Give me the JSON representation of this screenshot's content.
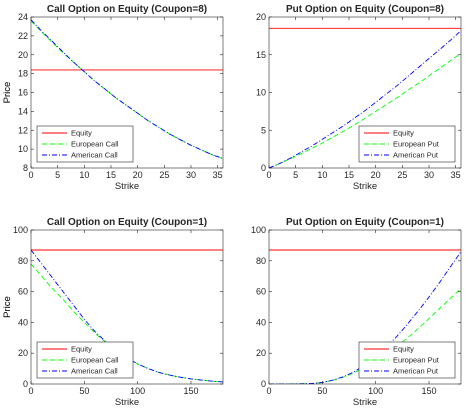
{
  "chart_data": [
    {
      "type": "line",
      "title": "Call Option on Equity (Coupon=8)",
      "xlabel": "Strike",
      "ylabel": "Price",
      "xlim": [
        0,
        36
      ],
      "ylim": [
        8,
        24
      ],
      "xticks": [
        0,
        5,
        10,
        15,
        20,
        25,
        30,
        35
      ],
      "yticks": [
        8,
        10,
        12,
        14,
        16,
        18,
        20,
        22,
        24
      ],
      "legend_position": "lower-left",
      "x": [
        0,
        2,
        4,
        6,
        8,
        10,
        12,
        14,
        16,
        18,
        20,
        22,
        24,
        26,
        28,
        30,
        32,
        34,
        36
      ],
      "series": [
        {
          "name": "Equity",
          "color": "#ff0000",
          "dash": "solid",
          "values": [
            18.4,
            18.4,
            18.4,
            18.4,
            18.4,
            18.4,
            18.4,
            18.4,
            18.4,
            18.4,
            18.4,
            18.4,
            18.4,
            18.4,
            18.4,
            18.4,
            18.4,
            18.4,
            18.4
          ]
        },
        {
          "name": "European Call",
          "color": "#00ff00",
          "dash": "dashed",
          "values": [
            23.6,
            22.4,
            21.3,
            20.2,
            19.2,
            18.2,
            17.2,
            16.3,
            15.4,
            14.6,
            13.8,
            13.0,
            12.3,
            11.6,
            11.0,
            10.4,
            9.9,
            9.4,
            9.0
          ]
        },
        {
          "name": "American Call",
          "color": "#0000ff",
          "dash": "dashdot",
          "values": [
            23.7,
            22.5,
            21.4,
            20.3,
            19.2,
            18.2,
            17.2,
            16.3,
            15.4,
            14.6,
            13.8,
            13.0,
            12.3,
            11.6,
            11.0,
            10.4,
            9.9,
            9.4,
            9.0
          ]
        }
      ]
    },
    {
      "type": "line",
      "title": "Put Option on Equity (Coupon=8)",
      "xlabel": "Strike",
      "ylabel": "Price",
      "xlim": [
        0,
        36
      ],
      "ylim": [
        0,
        20
      ],
      "xticks": [
        0,
        5,
        10,
        15,
        20,
        25,
        30,
        35
      ],
      "yticks": [
        0,
        5,
        10,
        15,
        20
      ],
      "legend_position": "lower-right",
      "x": [
        0,
        2,
        4,
        6,
        8,
        10,
        12,
        14,
        16,
        18,
        20,
        22,
        24,
        26,
        28,
        30,
        32,
        34,
        36
      ],
      "series": [
        {
          "name": "Equity",
          "color": "#ff0000",
          "dash": "solid",
          "values": [
            18.5,
            18.5,
            18.5,
            18.5,
            18.5,
            18.5,
            18.5,
            18.5,
            18.5,
            18.5,
            18.5,
            18.5,
            18.5,
            18.5,
            18.5,
            18.5,
            18.5,
            18.5,
            18.5
          ]
        },
        {
          "name": "European Put",
          "color": "#00ff00",
          "dash": "dashed",
          "values": [
            0,
            0.6,
            1.2,
            1.9,
            2.6,
            3.3,
            4.1,
            4.9,
            5.7,
            6.6,
            7.5,
            8.4,
            9.3,
            10.3,
            11.2,
            12.2,
            13.2,
            14.2,
            15.2
          ]
        },
        {
          "name": "American Put",
          "color": "#0000ff",
          "dash": "dashdot",
          "values": [
            0,
            0.6,
            1.3,
            2.1,
            2.9,
            3.8,
            4.7,
            5.6,
            6.6,
            7.6,
            8.7,
            9.8,
            10.9,
            12.1,
            13.3,
            14.5,
            15.7,
            16.9,
            18.2
          ]
        }
      ]
    },
    {
      "type": "line",
      "title": "Call Option on Equity (Coupon=1)",
      "xlabel": "Strike",
      "ylabel": "Price",
      "xlim": [
        0,
        180
      ],
      "ylim": [
        0,
        100
      ],
      "xticks": [
        0,
        50,
        100,
        150
      ],
      "yticks": [
        0,
        20,
        40,
        60,
        80,
        100
      ],
      "legend_position": "lower-left",
      "x": [
        0,
        10,
        20,
        30,
        40,
        50,
        60,
        70,
        80,
        90,
        100,
        110,
        120,
        130,
        140,
        150,
        160,
        170,
        180
      ],
      "series": [
        {
          "name": "Equity",
          "color": "#ff0000",
          "dash": "solid",
          "values": [
            87,
            87,
            87,
            87,
            87,
            87,
            87,
            87,
            87,
            87,
            87,
            87,
            87,
            87,
            87,
            87,
            87,
            87,
            87
          ]
        },
        {
          "name": "European Call",
          "color": "#00ff00",
          "dash": "dashed",
          "values": [
            78,
            70,
            62,
            55,
            47,
            40,
            33,
            27,
            21.5,
            17,
            13,
            10,
            7.5,
            5.8,
            4.4,
            3.3,
            2.5,
            1.8,
            1.3
          ]
        },
        {
          "name": "American Call",
          "color": "#0000ff",
          "dash": "dashdot",
          "values": [
            87,
            78,
            69,
            60,
            51,
            42,
            34,
            27.5,
            22,
            17,
            13,
            10,
            7.5,
            5.8,
            4.4,
            3.3,
            2.5,
            1.8,
            1.3
          ]
        }
      ]
    },
    {
      "type": "line",
      "title": "Put Option on Equity (Coupon=1)",
      "xlabel": "Strike",
      "ylabel": "Price",
      "xlim": [
        0,
        180
      ],
      "ylim": [
        0,
        100
      ],
      "xticks": [
        0,
        50,
        100,
        150
      ],
      "yticks": [
        0,
        20,
        40,
        60,
        80,
        100
      ],
      "legend_position": "lower-right",
      "x": [
        0,
        10,
        20,
        30,
        40,
        50,
        60,
        70,
        80,
        90,
        100,
        110,
        120,
        130,
        140,
        150,
        160,
        170,
        180
      ],
      "series": [
        {
          "name": "Equity",
          "color": "#ff0000",
          "dash": "solid",
          "values": [
            87,
            87,
            87,
            87,
            87,
            87,
            87,
            87,
            87,
            87,
            87,
            87,
            87,
            87,
            87,
            87,
            87,
            87,
            87
          ]
        },
        {
          "name": "European Put",
          "color": "#00ff00",
          "dash": "dashed",
          "values": [
            0,
            0,
            0,
            0.1,
            0.3,
            1,
            2.4,
            4.5,
            7.3,
            11,
            15,
            19.5,
            24.5,
            30,
            36,
            42.5,
            49,
            55.5,
            62
          ]
        },
        {
          "name": "American Put",
          "color": "#0000ff",
          "dash": "dashdot",
          "values": [
            0,
            0,
            0,
            0.1,
            0.3,
            1,
            2.5,
            4.8,
            8,
            12.5,
            18,
            24,
            31,
            39,
            47.5,
            56.5,
            66,
            76,
            86
          ]
        }
      ]
    }
  ]
}
